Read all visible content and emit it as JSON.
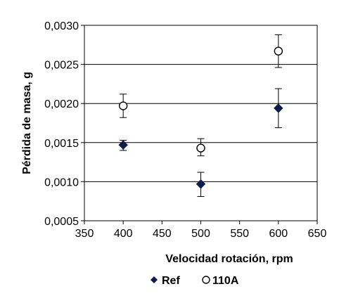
{
  "chart_data": {
    "type": "scatter",
    "title": "",
    "xlabel": "Velocidad rotación, rpm",
    "ylabel": "Pérdida de masa, g",
    "xlim": [
      350,
      650
    ],
    "ylim": [
      0.0005,
      0.003
    ],
    "x_ticks": [
      350,
      400,
      450,
      500,
      550,
      600,
      650
    ],
    "x_tick_labels": [
      "350",
      "400",
      "450",
      "500",
      "550",
      "600",
      "650"
    ],
    "y_ticks": [
      0.0005,
      0.001,
      0.0015,
      0.002,
      0.0025,
      0.003
    ],
    "y_tick_labels": [
      "0,0005",
      "0,0010",
      "0,0015",
      "0,0020",
      "0,0025",
      "0,0030"
    ],
    "grid": "horizontal",
    "legend_position": "bottom",
    "error_bars": true,
    "series": [
      {
        "name": "Ref",
        "marker": "diamond",
        "color": "#0d1a4a",
        "points": [
          {
            "x": 400,
            "y": 0.00147,
            "err_low": 0.0014,
            "err_high": 0.00153
          },
          {
            "x": 500,
            "y": 0.00097,
            "err_low": 0.00081,
            "err_high": 0.00112
          },
          {
            "x": 600,
            "y": 0.00194,
            "err_low": 0.00169,
            "err_high": 0.00219
          }
        ]
      },
      {
        "name": "110A",
        "marker": "circle-open",
        "color": "#000000",
        "points": [
          {
            "x": 400,
            "y": 0.00197,
            "err_low": 0.00182,
            "err_high": 0.00212
          },
          {
            "x": 500,
            "y": 0.00143,
            "err_low": 0.00133,
            "err_high": 0.00155
          },
          {
            "x": 600,
            "y": 0.00267,
            "err_low": 0.00246,
            "err_high": 0.00288
          }
        ]
      }
    ]
  }
}
